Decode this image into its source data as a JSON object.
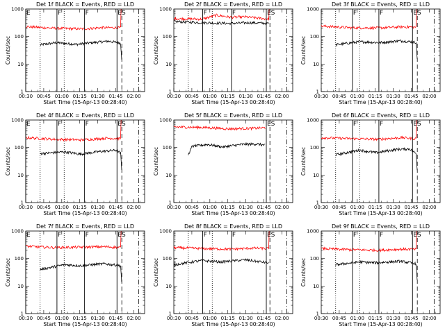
{
  "chart_data": [
    {
      "type": "line",
      "title": "Det 1f  BLACK = Events, RED = LLD",
      "xlabel": "Start Time (15-Apr-13 00:28:40)",
      "ylabel": "Counts/sec",
      "yscale": "log",
      "ylim": [
        1,
        1000
      ],
      "xlim": [
        "00:30",
        "02:09"
      ],
      "xticks": [
        "00:30",
        "00:45",
        "01:00",
        "01:15",
        "01:30",
        "01:45",
        "02:00"
      ],
      "yticks": [
        "1",
        "10",
        "100",
        "1000"
      ],
      "markers": [
        {
          "label": "E",
          "time": "00:30",
          "style": "solid"
        },
        {
          "label": "F",
          "time": "00:56",
          "style": "solid"
        },
        {
          "label": "F",
          "time": "01:19",
          "style": "solid"
        },
        {
          "label": "ES",
          "time": "01:46",
          "style": "solid"
        }
      ],
      "dotted_lines": [
        "00:42",
        "01:02"
      ],
      "dash_lines": [
        "01:50"
      ],
      "dashdot_lines": [
        "02:04"
      ],
      "series": [
        {
          "name": "Events",
          "color": "#000000",
          "start": "00:42",
          "end": "01:49",
          "base": [
            [
              0,
              50
            ],
            [
              0.2,
              60
            ],
            [
              0.45,
              52
            ],
            [
              0.65,
              60
            ],
            [
              0.85,
              68
            ],
            [
              1,
              58
            ]
          ],
          "ends_with_drop": true
        },
        {
          "name": "LLD",
          "color": "#ff0000",
          "start": "00:30",
          "end": "01:49",
          "base": [
            [
              0,
              230
            ],
            [
              0.3,
              200
            ],
            [
              0.6,
              190
            ],
            [
              0.8,
              210
            ],
            [
              1,
              210
            ]
          ],
          "spike_end": 980
        }
      ]
    },
    {
      "type": "line",
      "title": "Det 2f  BLACK = Events, RED = LLD",
      "xlabel": "Start Time (15-Apr-13 00:28:40)",
      "ylabel": "Counts/sec",
      "yscale": "log",
      "ylim": [
        1,
        1000
      ],
      "xlim": [
        "00:30",
        "02:09"
      ],
      "xticks": [
        "00:30",
        "00:45",
        "01:00",
        "01:15",
        "01:30",
        "01:45",
        "02:00"
      ],
      "yticks": [
        "1",
        "10",
        "100",
        "1000"
      ],
      "markers": [
        {
          "label": "F",
          "time": "00:54",
          "style": "solid"
        },
        {
          "label": "F",
          "time": "01:18",
          "style": "solid"
        },
        {
          "label": "ES",
          "time": "01:47",
          "style": "solid"
        }
      ],
      "dotted_lines": [
        "00:42",
        "01:02"
      ],
      "dash_lines": [
        "01:50"
      ],
      "dashdot_lines": [
        "02:04"
      ],
      "series": [
        {
          "name": "Events",
          "color": "#000000",
          "start": "00:30",
          "end": "01:49",
          "base": [
            [
              0,
              350
            ],
            [
              0.3,
              320
            ],
            [
              0.6,
              300
            ],
            [
              0.8,
              320
            ],
            [
              1,
              300
            ]
          ],
          "ends_with_drop": false
        },
        {
          "name": "LLD",
          "color": "#ff0000",
          "start": "00:30",
          "end": "01:49",
          "base": [
            [
              0,
              450
            ],
            [
              0.3,
              430
            ],
            [
              0.45,
              600
            ],
            [
              0.6,
              500
            ],
            [
              0.75,
              520
            ],
            [
              1,
              430
            ]
          ],
          "spike_end": 980
        }
      ]
    },
    {
      "type": "line",
      "title": "Det 3f  BLACK = Events, RED = LLD",
      "xlabel": "Start Time (15-Apr-13 00:28:40)",
      "ylabel": "Counts/sec",
      "yscale": "log",
      "ylim": [
        1,
        1000
      ],
      "xlim": [
        "00:30",
        "02:09"
      ],
      "xticks": [
        "00:30",
        "00:45",
        "01:00",
        "01:15",
        "01:30",
        "01:45",
        "02:00"
      ],
      "yticks": [
        "1",
        "10",
        "100",
        "1000"
      ],
      "markers": [
        {
          "label": "F",
          "time": "00:56",
          "style": "solid"
        },
        {
          "label": "F",
          "time": "01:18",
          "style": "solid"
        },
        {
          "label": "ES",
          "time": "01:46",
          "style": "solid"
        }
      ],
      "dotted_lines": [
        "00:42",
        "01:02"
      ],
      "dash_lines": [
        "01:50"
      ],
      "dashdot_lines": [
        "02:04"
      ],
      "series": [
        {
          "name": "Events",
          "color": "#000000",
          "start": "00:42",
          "end": "01:49",
          "base": [
            [
              0,
              50
            ],
            [
              0.3,
              65
            ],
            [
              0.55,
              60
            ],
            [
              0.8,
              70
            ],
            [
              1,
              62
            ]
          ],
          "ends_with_drop": true
        },
        {
          "name": "LLD",
          "color": "#ff0000",
          "start": "00:30",
          "end": "01:49",
          "base": [
            [
              0,
              240
            ],
            [
              0.3,
              210
            ],
            [
              0.6,
              205
            ],
            [
              0.85,
              225
            ],
            [
              1,
              220
            ]
          ],
          "spike_end": 980
        }
      ]
    },
    {
      "type": "line",
      "title": "Det 4f  BLACK = Events, RED = LLD",
      "xlabel": "Start Time (15-Apr-13 00:28:40)",
      "ylabel": "Counts/sec",
      "yscale": "log",
      "ylim": [
        1,
        1000
      ],
      "xlim": [
        "00:30",
        "02:09"
      ],
      "xticks": [
        "00:30",
        "00:45",
        "01:00",
        "01:15",
        "01:30",
        "01:45",
        "02:00"
      ],
      "yticks": [
        "1",
        "10",
        "100",
        "1000"
      ],
      "markers": [
        {
          "label": "E",
          "time": "00:30",
          "style": "solid"
        },
        {
          "label": "F",
          "time": "00:56",
          "style": "solid"
        },
        {
          "label": "F",
          "time": "01:19",
          "style": "solid"
        },
        {
          "label": "ES",
          "time": "01:46",
          "style": "solid"
        }
      ],
      "dotted_lines": [
        "00:42",
        "01:02"
      ],
      "dash_lines": [
        "01:50"
      ],
      "dashdot_lines": [
        "02:04"
      ],
      "series": [
        {
          "name": "Events",
          "color": "#000000",
          "start": "00:42",
          "end": "01:49",
          "base": [
            [
              0,
              60
            ],
            [
              0.3,
              70
            ],
            [
              0.5,
              58
            ],
            [
              0.75,
              72
            ],
            [
              0.95,
              80
            ],
            [
              1,
              62
            ]
          ],
          "ends_with_drop": true
        },
        {
          "name": "LLD",
          "color": "#ff0000",
          "start": "00:30",
          "end": "01:49",
          "base": [
            [
              0,
              230
            ],
            [
              0.3,
              200
            ],
            [
              0.6,
              190
            ],
            [
              0.85,
              220
            ],
            [
              1,
              210
            ]
          ],
          "spike_end": 980
        }
      ]
    },
    {
      "type": "line",
      "title": "Det 5f  BLACK = Events, RED = LLD",
      "xlabel": "Start Time (15-Apr-13 00:28:40)",
      "ylabel": "Counts/sec",
      "yscale": "log",
      "ylim": [
        1,
        1000
      ],
      "xlim": [
        "00:30",
        "02:09"
      ],
      "xticks": [
        "00:30",
        "00:45",
        "01:00",
        "01:15",
        "01:30",
        "01:45",
        "02:00"
      ],
      "yticks": [
        "1",
        "10",
        "100",
        "1000"
      ],
      "markers": [
        {
          "label": "ES",
          "time": "01:47",
          "style": "solid"
        }
      ],
      "dotted_lines": [],
      "dash_lines": [
        "01:50"
      ],
      "dashdot_lines": [
        "02:04"
      ],
      "series": [
        {
          "name": "Events",
          "color": "#000000",
          "start": "00:42",
          "end": "01:46",
          "base": [
            [
              0,
              55
            ],
            [
              0.05,
              110
            ],
            [
              0.25,
              130
            ],
            [
              0.45,
              105
            ],
            [
              0.7,
              130
            ],
            [
              0.9,
              135
            ],
            [
              1,
              120
            ]
          ],
          "ends_with_drop": false
        },
        {
          "name": "LLD",
          "color": "#ff0000",
          "start": "00:30",
          "end": "01:46",
          "base": [
            [
              0,
              560
            ],
            [
              0.3,
              540
            ],
            [
              0.6,
              480
            ],
            [
              0.85,
              500
            ],
            [
              1,
              520
            ]
          ],
          "spike_end": null
        }
      ]
    },
    {
      "type": "line",
      "title": "Det 6f  BLACK = Events, RED = LLD",
      "xlabel": "Start Time (15-Apr-13 00:28:40)",
      "ylabel": "Counts/sec",
      "yscale": "log",
      "ylim": [
        1,
        1000
      ],
      "xlim": [
        "00:30",
        "02:09"
      ],
      "xticks": [
        "00:30",
        "00:45",
        "01:00",
        "01:15",
        "01:30",
        "01:45",
        "02:00"
      ],
      "yticks": [
        "1",
        "10",
        "100",
        "1000"
      ],
      "markers": [
        {
          "label": "F",
          "time": "00:56",
          "style": "solid"
        },
        {
          "label": "F",
          "time": "01:18",
          "style": "solid"
        },
        {
          "label": "ES",
          "time": "01:46",
          "style": "solid"
        }
      ],
      "dotted_lines": [
        "00:42",
        "01:02"
      ],
      "dash_lines": [
        "01:50"
      ],
      "dashdot_lines": [
        "02:04"
      ],
      "series": [
        {
          "name": "Events",
          "color": "#000000",
          "start": "00:42",
          "end": "01:49",
          "base": [
            [
              0,
              55
            ],
            [
              0.3,
              80
            ],
            [
              0.5,
              65
            ],
            [
              0.75,
              85
            ],
            [
              0.92,
              90
            ],
            [
              1,
              60
            ]
          ],
          "ends_with_drop": true
        },
        {
          "name": "LLD",
          "color": "#ff0000",
          "start": "00:30",
          "end": "01:49",
          "base": [
            [
              0,
              230
            ],
            [
              0.3,
              210
            ],
            [
              0.6,
              200
            ],
            [
              0.85,
              230
            ],
            [
              1,
              210
            ]
          ],
          "spike_end": 980
        }
      ]
    },
    {
      "type": "line",
      "title": "Det 7f  BLACK = Events, RED = LLD",
      "xlabel": "Start Time (15-Apr-13 00:28:40)",
      "ylabel": "Counts/sec",
      "yscale": "log",
      "ylim": [
        1,
        1000
      ],
      "xlim": [
        "00:30",
        "02:09"
      ],
      "xticks": [
        "00:30",
        "00:45",
        "01:00",
        "01:15",
        "01:30",
        "01:45",
        "02:00"
      ],
      "yticks": [
        "1",
        "10",
        "100",
        "1000"
      ],
      "markers": [
        {
          "label": "E",
          "time": "00:30",
          "style": "solid"
        },
        {
          "label": "F",
          "time": "00:56",
          "style": "solid"
        },
        {
          "label": "F",
          "time": "01:19",
          "style": "solid"
        },
        {
          "label": "ES",
          "time": "01:46",
          "style": "solid"
        }
      ],
      "dotted_lines": [
        "00:42",
        "01:02"
      ],
      "dash_lines": [
        "01:50"
      ],
      "dashdot_lines": [
        "02:04"
      ],
      "series": [
        {
          "name": "Events",
          "color": "#000000",
          "start": "00:42",
          "end": "01:49",
          "base": [
            [
              0,
              40
            ],
            [
              0.3,
              60
            ],
            [
              0.5,
              55
            ],
            [
              0.8,
              65
            ],
            [
              1,
              55
            ]
          ],
          "ends_with_drop": true
        },
        {
          "name": "LLD",
          "color": "#ff0000",
          "start": "00:30",
          "end": "01:49",
          "base": [
            [
              0,
              280
            ],
            [
              0.3,
              250
            ],
            [
              0.6,
              260
            ],
            [
              0.85,
              270
            ],
            [
              1,
              250
            ]
          ],
          "spike_end": 980
        }
      ]
    },
    {
      "type": "line",
      "title": "Det 8f  BLACK = Events, RED = LLD",
      "xlabel": "Start Time (15-Apr-13 00:28:40)",
      "ylabel": "Counts/sec",
      "yscale": "log",
      "ylim": [
        1,
        1000
      ],
      "xlim": [
        "00:30",
        "02:09"
      ],
      "xticks": [
        "00:30",
        "00:45",
        "01:00",
        "01:15",
        "01:30",
        "01:45",
        "02:00"
      ],
      "yticks": [
        "1",
        "10",
        "100",
        "1000"
      ],
      "markers": [
        {
          "label": "F",
          "time": "00:54",
          "style": "solid"
        },
        {
          "label": "F",
          "time": "01:18",
          "style": "solid"
        },
        {
          "label": "ES",
          "time": "01:47",
          "style": "solid"
        }
      ],
      "dotted_lines": [
        "00:42",
        "01:02"
      ],
      "dash_lines": [
        "01:50"
      ],
      "dashdot_lines": [
        "02:04"
      ],
      "series": [
        {
          "name": "Events",
          "color": "#000000",
          "start": "00:30",
          "end": "01:49",
          "base": [
            [
              0,
              60
            ],
            [
              0.3,
              85
            ],
            [
              0.5,
              75
            ],
            [
              0.75,
              90
            ],
            [
              1,
              70
            ]
          ],
          "ends_with_drop": false
        },
        {
          "name": "LLD",
          "color": "#ff0000",
          "start": "00:30",
          "end": "01:49",
          "base": [
            [
              0,
              250
            ],
            [
              0.3,
              230
            ],
            [
              0.6,
              220
            ],
            [
              0.85,
              240
            ],
            [
              1,
              230
            ]
          ],
          "spike_end": 980
        }
      ]
    },
    {
      "type": "line",
      "title": "Det 9f  BLACK = Events, RED = LLD",
      "xlabel": "Start Time (15-Apr-13 00:28:40)",
      "ylabel": "Counts/sec",
      "yscale": "log",
      "ylim": [
        1,
        1000
      ],
      "xlim": [
        "00:30",
        "02:09"
      ],
      "xticks": [
        "00:30",
        "00:45",
        "01:00",
        "01:15",
        "01:30",
        "01:45",
        "02:00"
      ],
      "yticks": [
        "1",
        "10",
        "100",
        "1000"
      ],
      "markers": [
        {
          "label": "F",
          "time": "00:56",
          "style": "solid"
        },
        {
          "label": "F",
          "time": "01:18",
          "style": "solid"
        },
        {
          "label": "ES",
          "time": "01:46",
          "style": "solid"
        }
      ],
      "dotted_lines": [
        "00:42",
        "01:02"
      ],
      "dash_lines": [
        "01:50"
      ],
      "dashdot_lines": [
        "02:04"
      ],
      "series": [
        {
          "name": "Events",
          "color": "#000000",
          "start": "00:42",
          "end": "01:49",
          "base": [
            [
              0,
              60
            ],
            [
              0.3,
              75
            ],
            [
              0.5,
              70
            ],
            [
              0.8,
              80
            ],
            [
              1,
              65
            ]
          ],
          "ends_with_drop": true
        },
        {
          "name": "LLD",
          "color": "#ff0000",
          "start": "00:30",
          "end": "01:49",
          "base": [
            [
              0,
              230
            ],
            [
              0.3,
              210
            ],
            [
              0.6,
              200
            ],
            [
              0.85,
              220
            ],
            [
              1,
              215
            ]
          ],
          "spike_end": 980
        }
      ]
    }
  ]
}
